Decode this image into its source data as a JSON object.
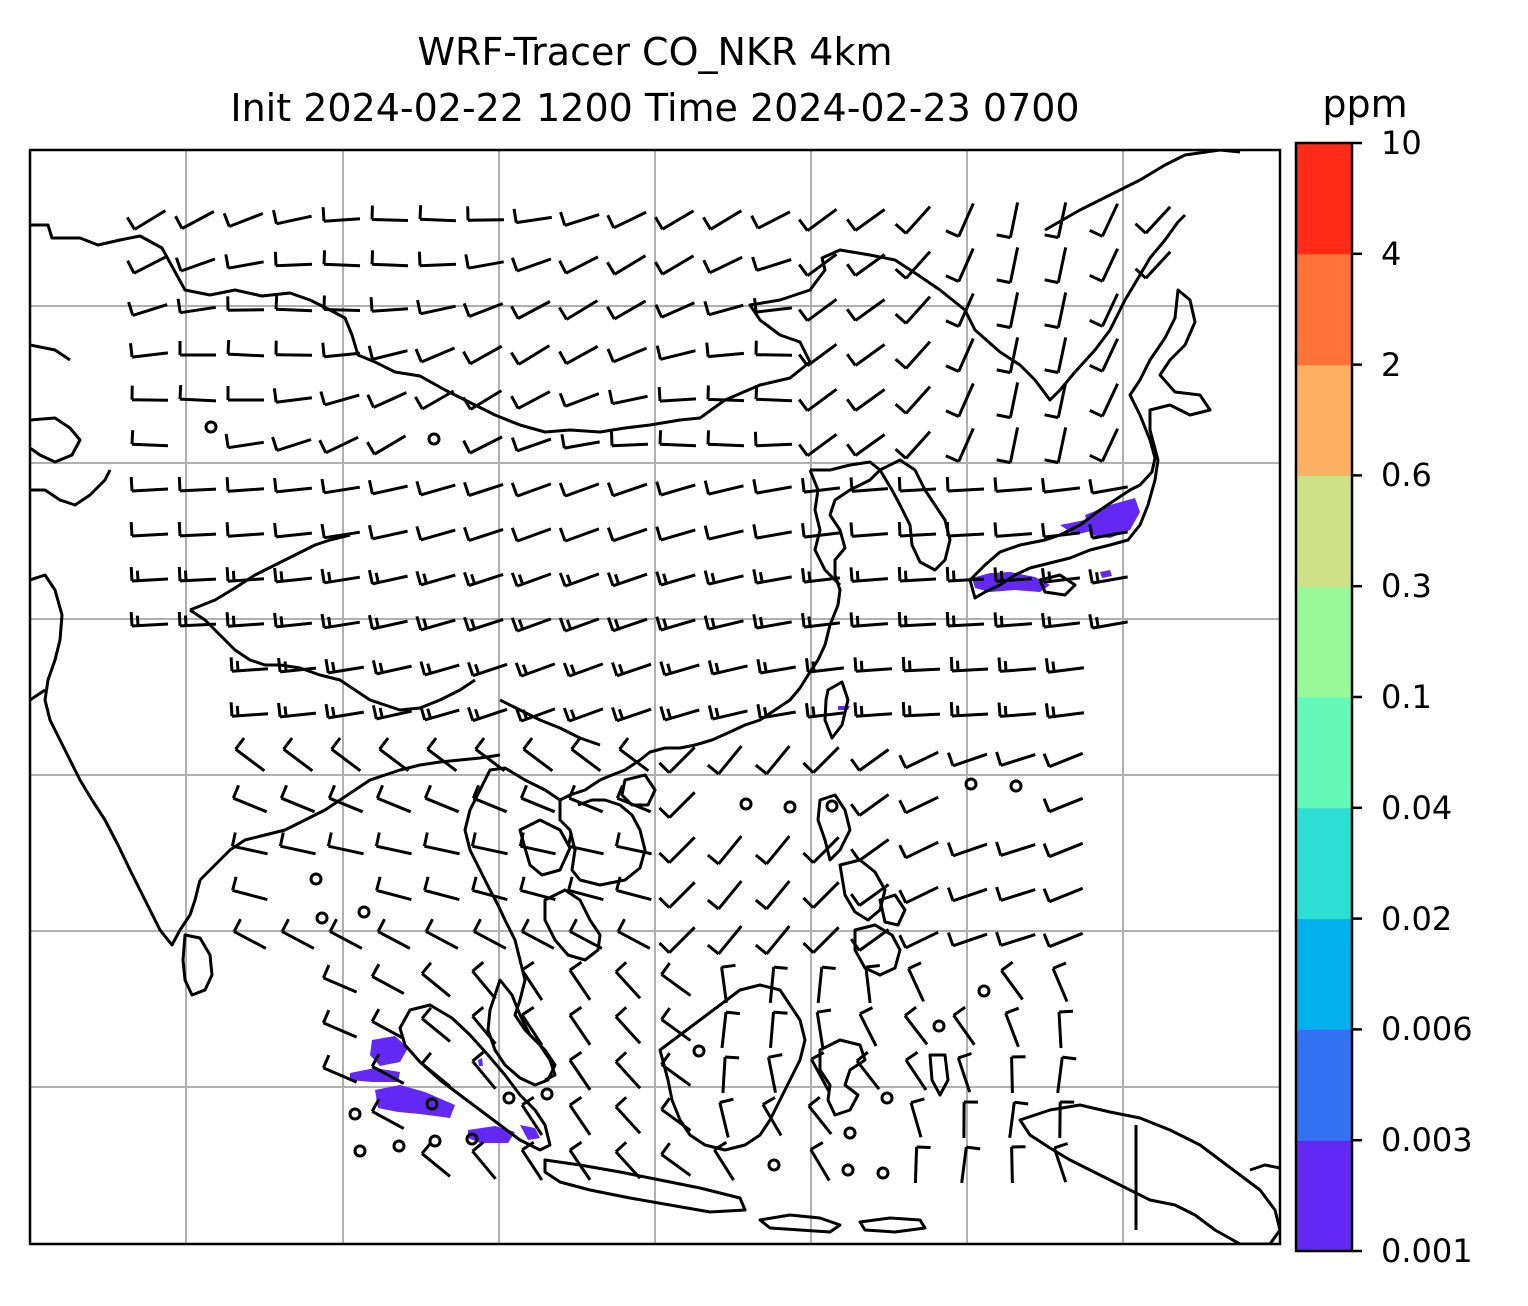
{
  "title": {
    "line1": "WRF-Tracer CO_NKR 4km",
    "line2": "Init 2024-02-22 1200 Time 2024-02-23 0700"
  },
  "colorbar": {
    "unit": "ppm",
    "levels": [
      "0.001",
      "0.003",
      "0.006",
      "0.02",
      "0.04",
      "0.1",
      "0.3",
      "0.6",
      "2",
      "4",
      "10"
    ],
    "colors": [
      "#6428f5",
      "#3372f2",
      "#04b1ec",
      "#2ddfd2",
      "#64f8b9",
      "#98f99a",
      "#cfe186",
      "#fdb061",
      "#ff7238",
      "#ff2b18"
    ]
  },
  "map": {
    "gridlines": true,
    "coastline_color": "#000000",
    "grid_color": "#b0b0b0",
    "tracer_color": "#6428f5",
    "features": [
      "coastlines",
      "wind-barbs",
      "tracer-concentration"
    ]
  }
}
